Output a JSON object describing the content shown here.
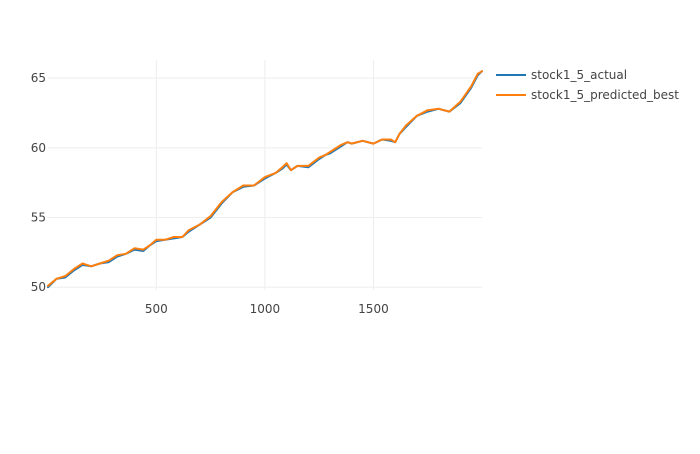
{
  "chart_data": {
    "type": "line",
    "title": "",
    "xlabel": "",
    "ylabel": "",
    "xlim": [
      1,
      2000
    ],
    "ylim": [
      49.8,
      66.3
    ],
    "x_ticks": [
      500,
      1000,
      1500
    ],
    "y_ticks": [
      50,
      55,
      60,
      65
    ],
    "grid": true,
    "legend_position": "top-right",
    "series": [
      {
        "name": "stock1_5_actual",
        "color": "#1f77b4",
        "x": [
          1,
          40,
          80,
          120,
          160,
          200,
          240,
          280,
          320,
          360,
          400,
          440,
          470,
          500,
          540,
          580,
          620,
          650,
          700,
          750,
          800,
          850,
          900,
          950,
          1000,
          1050,
          1080,
          1100,
          1120,
          1150,
          1200,
          1250,
          1280,
          1300,
          1350,
          1380,
          1400,
          1450,
          1500,
          1540,
          1580,
          1600,
          1620,
          1650,
          1700,
          1750,
          1800,
          1850,
          1900,
          1950,
          1980,
          2000
        ],
        "values": [
          50.0,
          50.6,
          50.7,
          51.2,
          51.6,
          51.5,
          51.7,
          51.8,
          52.2,
          52.4,
          52.7,
          52.6,
          53.0,
          53.3,
          53.4,
          53.5,
          53.6,
          54.0,
          54.5,
          55.0,
          56.0,
          56.8,
          57.2,
          57.3,
          57.8,
          58.2,
          58.5,
          58.8,
          58.4,
          58.7,
          58.6,
          59.2,
          59.5,
          59.6,
          60.1,
          60.4,
          60.3,
          60.5,
          60.3,
          60.6,
          60.5,
          60.4,
          61.0,
          61.5,
          62.3,
          62.6,
          62.8,
          62.6,
          63.2,
          64.3,
          65.2,
          65.5
        ]
      },
      {
        "name": "stock1_5_predicted_best",
        "color": "#ff7f0e",
        "x": [
          1,
          40,
          80,
          120,
          160,
          200,
          240,
          280,
          320,
          360,
          400,
          440,
          470,
          500,
          540,
          580,
          620,
          650,
          700,
          750,
          800,
          850,
          900,
          950,
          1000,
          1050,
          1080,
          1100,
          1120,
          1150,
          1200,
          1250,
          1280,
          1300,
          1350,
          1380,
          1400,
          1450,
          1500,
          1540,
          1580,
          1600,
          1620,
          1650,
          1700,
          1750,
          1800,
          1850,
          1900,
          1950,
          1980,
          2000
        ],
        "values": [
          50.1,
          50.6,
          50.8,
          51.3,
          51.7,
          51.5,
          51.7,
          51.9,
          52.3,
          52.4,
          52.8,
          52.7,
          53.0,
          53.4,
          53.4,
          53.6,
          53.6,
          54.1,
          54.5,
          55.1,
          56.1,
          56.8,
          57.3,
          57.3,
          57.9,
          58.2,
          58.6,
          58.9,
          58.4,
          58.7,
          58.7,
          59.3,
          59.5,
          59.7,
          60.2,
          60.4,
          60.3,
          60.5,
          60.3,
          60.6,
          60.6,
          60.4,
          61.0,
          61.6,
          62.3,
          62.7,
          62.8,
          62.6,
          63.3,
          64.4,
          65.3,
          65.5
        ]
      }
    ]
  }
}
